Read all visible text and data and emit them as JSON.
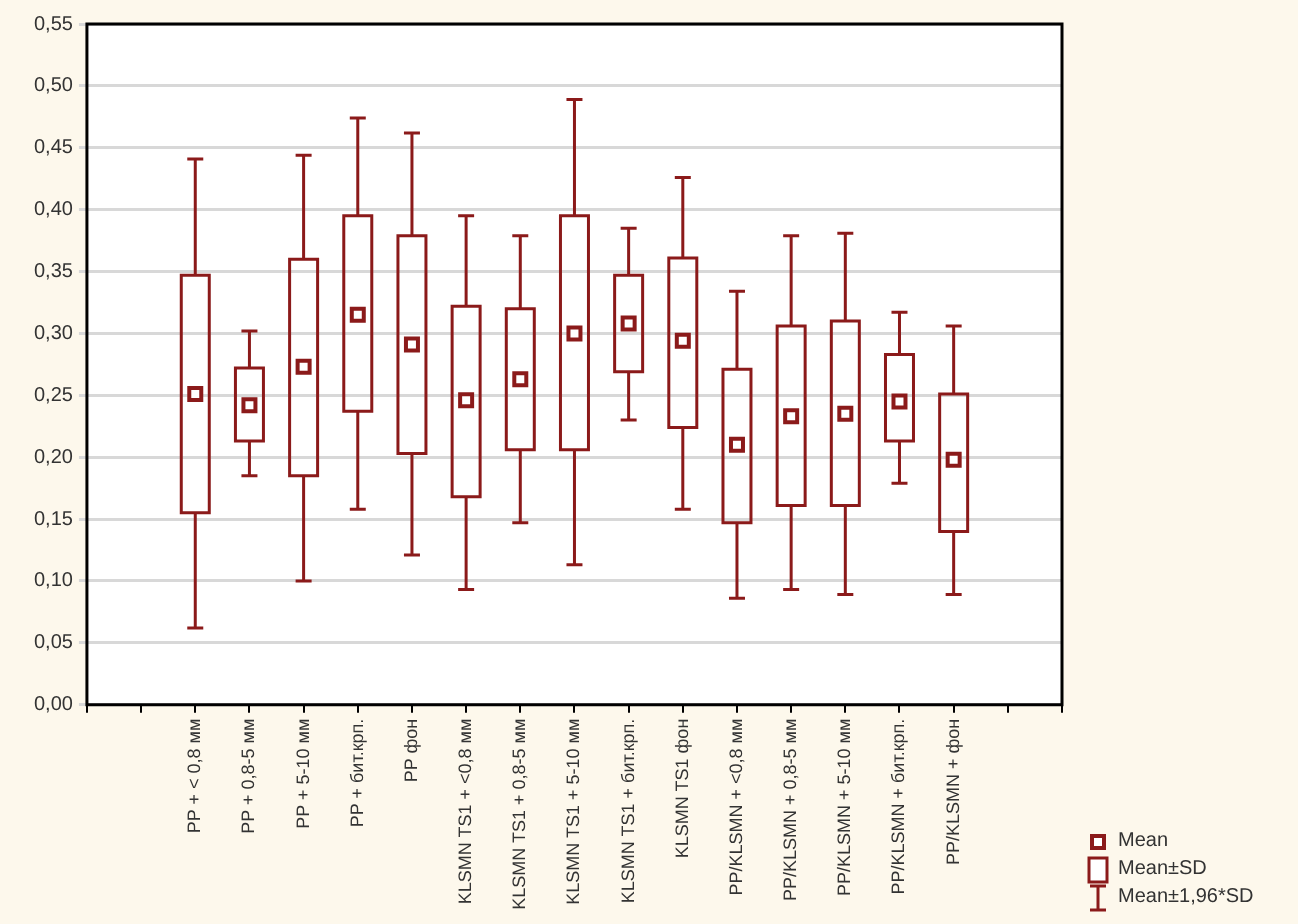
{
  "chart_data": {
    "type": "box",
    "categories": [
      "PP + < 0,8 мм",
      "PP + 0,8-5 мм",
      "PP + 5-10 мм",
      "PP + бит.крп.",
      "PP фон",
      "KLSMN TS1 + <0,8 мм",
      "KLSMN TS1 + 0,8-5 мм",
      "KLSMN TS1 + 5-10 мм",
      "KLSMN TS1 + бит.крп.",
      "KLSMN TS1 фон",
      "PP/KLSMN + <0,8 мм",
      "PP/KLSMN + 0,8-5 мм",
      "PP/KLSMN + 5-10 мм",
      "PP/KLSMN + бит.крп.",
      "PP/KLSMN + фон"
    ],
    "color": "#8b1a1a",
    "boxes": [
      {
        "low": 0.062,
        "q1": 0.155,
        "mean": 0.251,
        "q3": 0.347,
        "high": 0.441
      },
      {
        "low": 0.185,
        "q1": 0.213,
        "mean": 0.242,
        "q3": 0.272,
        "high": 0.302
      },
      {
        "low": 0.1,
        "q1": 0.185,
        "mean": 0.273,
        "q3": 0.36,
        "high": 0.444
      },
      {
        "low": 0.158,
        "q1": 0.237,
        "mean": 0.315,
        "q3": 0.395,
        "high": 0.474
      },
      {
        "low": 0.121,
        "q1": 0.203,
        "mean": 0.291,
        "q3": 0.379,
        "high": 0.462
      },
      {
        "low": 0.093,
        "q1": 0.168,
        "mean": 0.246,
        "q3": 0.322,
        "high": 0.395
      },
      {
        "low": 0.147,
        "q1": 0.206,
        "mean": 0.263,
        "q3": 0.32,
        "high": 0.379
      },
      {
        "low": 0.113,
        "q1": 0.206,
        "mean": 0.3,
        "q3": 0.395,
        "high": 0.489
      },
      {
        "low": 0.23,
        "q1": 0.269,
        "mean": 0.308,
        "q3": 0.347,
        "high": 0.385
      },
      {
        "low": 0.158,
        "q1": 0.224,
        "mean": 0.294,
        "q3": 0.361,
        "high": 0.426
      },
      {
        "low": 0.086,
        "q1": 0.147,
        "mean": 0.21,
        "q3": 0.271,
        "high": 0.334
      },
      {
        "low": 0.093,
        "q1": 0.161,
        "mean": 0.233,
        "q3": 0.306,
        "high": 0.379
      },
      {
        "low": 0.089,
        "q1": 0.161,
        "mean": 0.235,
        "q3": 0.31,
        "high": 0.381
      },
      {
        "low": 0.179,
        "q1": 0.213,
        "mean": 0.245,
        "q3": 0.283,
        "high": 0.317
      },
      {
        "low": 0.089,
        "q1": 0.14,
        "mean": 0.198,
        "q3": 0.251,
        "high": 0.306
      }
    ],
    "ylim": [
      0,
      0.55
    ],
    "yticks": [
      {
        "value": 0,
        "label": "0,00"
      },
      {
        "value": 0.05,
        "label": "0,05"
      },
      {
        "value": 0.1,
        "label": "0,10"
      },
      {
        "value": 0.15,
        "label": "0,15"
      },
      {
        "value": 0.2,
        "label": "0,20"
      },
      {
        "value": 0.25,
        "label": "0,25"
      },
      {
        "value": 0.3,
        "label": "0,30"
      },
      {
        "value": 0.35,
        "label": "0,35"
      },
      {
        "value": 0.4,
        "label": "0,40"
      },
      {
        "value": 0.45,
        "label": "0,45"
      },
      {
        "value": 0.5,
        "label": "0,50"
      },
      {
        "value": 0.55,
        "label": "0,55"
      }
    ],
    "grid": "y",
    "annotations": [
      "Mean",
      "Mean±SD",
      "Mean±1,96*SD"
    ]
  }
}
